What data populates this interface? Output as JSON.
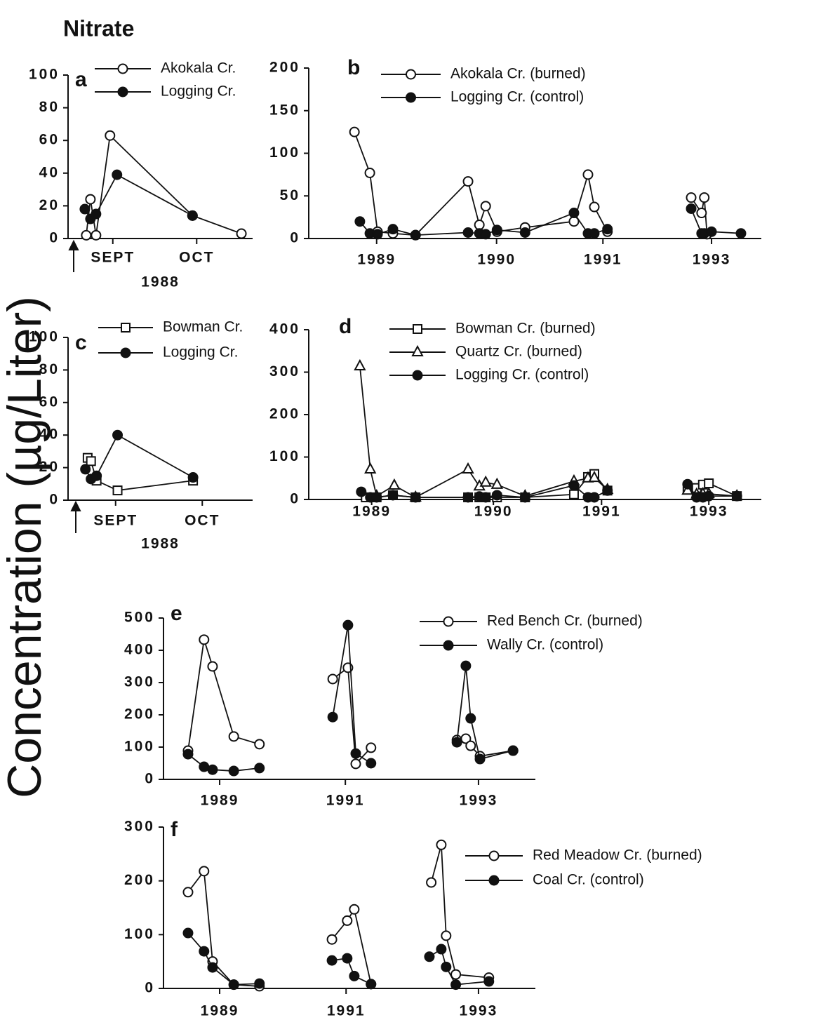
{
  "title": "Nitrate",
  "ylabel": "Concentration (µg/Liter)",
  "chart_data": [
    {
      "type": "line",
      "label": "a",
      "xlabel": "1988",
      "xlim": [
        -1,
        65
      ],
      "xticks": [
        {
          "value": 15,
          "label": "SEPT"
        },
        {
          "value": 45,
          "label": "OCT"
        }
      ],
      "ylim": [
        0,
        100
      ],
      "yticks": [
        0,
        20,
        40,
        60,
        80,
        100
      ],
      "series": [
        {
          "name": "Akokala Cr.",
          "marker": "open-circle",
          "color": "#111",
          "x": [
            5.5,
            7,
            9,
            14,
            43.5,
            61
          ],
          "values": [
            2,
            24,
            2,
            63,
            14,
            3
          ]
        },
        {
          "name": "Logging Cr.",
          "marker": "filled-circle",
          "color": "#111",
          "x": [
            5,
            7,
            9,
            16.5,
            43.5
          ],
          "values": [
            18,
            12,
            15,
            39,
            14
          ]
        }
      ]
    },
    {
      "type": "line",
      "label": "b",
      "xlim": [
        0,
        100
      ],
      "xticks": [
        {
          "value": 15,
          "label": "1989"
        },
        {
          "value": 41.5,
          "label": "1990"
        },
        {
          "value": 65,
          "label": "1991"
        },
        {
          "value": 89,
          "label": "1993"
        }
      ],
      "ylim": [
        0,
        200
      ],
      "yticks": [
        0,
        50,
        100,
        150,
        200
      ],
      "series": [
        {
          "name": "Akokala Cr. (burned)",
          "marker": "open-circle",
          "color": "#111",
          "x": [
            10.1,
            13.5,
            15.2,
            18.6,
            23.6,
            35.2,
            37.7,
            39.1,
            41.6,
            47.8,
            58.6,
            61.7,
            63.1,
            66,
            null,
            84.5,
            86.8,
            87.4,
            88
          ],
          "values": [
            125,
            77,
            8,
            6,
            4,
            67,
            16,
            38,
            8,
            13,
            20,
            75,
            37,
            8,
            null,
            48,
            30,
            48,
            5
          ]
        },
        {
          "name": "Logging Cr. (control)",
          "marker": "filled-circle",
          "color": "#111",
          "x": [
            11.3,
            13.5,
            15.2,
            18.6,
            23.6,
            35.2,
            37.7,
            39.1,
            41.6,
            47.8,
            58.6,
            61.7,
            63.1,
            66,
            null,
            84.5,
            86.8,
            87.4,
            89,
            95.5
          ],
          "values": [
            20,
            6,
            5,
            11,
            4,
            7,
            6,
            5,
            10,
            7,
            30,
            6,
            6,
            11,
            null,
            35,
            6,
            6,
            8,
            6
          ]
        }
      ]
    },
    {
      "type": "line",
      "label": "c",
      "xlabel": "1988",
      "xlim": [
        -1,
        65
      ],
      "xticks": [
        {
          "value": 16,
          "label": "SEPT"
        },
        {
          "value": 47,
          "label": "OCT"
        }
      ],
      "ylim": [
        0,
        100
      ],
      "yticks": [
        0,
        20,
        40,
        60,
        80,
        100
      ],
      "series": [
        {
          "name": "Bowman Cr.",
          "marker": "open-square",
          "color": "#111",
          "x": [
            6,
            7.2,
            9.2,
            16.7,
            43.7
          ],
          "values": [
            26,
            24,
            12,
            6,
            12
          ]
        },
        {
          "name": "Logging Cr.",
          "marker": "filled-circle",
          "color": "#111",
          "x": [
            5.2,
            7.2,
            9.2,
            16.7,
            43.7
          ],
          "values": [
            19,
            13,
            15,
            40,
            14
          ]
        }
      ]
    },
    {
      "type": "line",
      "label": "d",
      "xlim": [
        0,
        100
      ],
      "xticks": [
        {
          "value": 13.9,
          "label": "1989"
        },
        {
          "value": 40.8,
          "label": "1990"
        },
        {
          "value": 64.7,
          "label": "1991"
        },
        {
          "value": 88.4,
          "label": "1993"
        }
      ],
      "ylim": [
        0,
        400
      ],
      "yticks": [
        0,
        100,
        200,
        300,
        400
      ],
      "series": [
        {
          "name": "Bowman Cr. (burned)",
          "marker": "open-square",
          "color": "#111",
          "x": [
            12.6,
            15,
            18.6,
            23.6,
            35.2,
            37.7,
            39.1,
            41.6,
            47.8,
            58.6,
            61.7,
            63.1,
            66,
            null,
            83.7,
            85.7,
            87.1,
            88.4,
            94.6
          ],
          "values": [
            5,
            5,
            10,
            5,
            5,
            5,
            5,
            5,
            5,
            12,
            53,
            60,
            21,
            null,
            25,
            27,
            35,
            38,
            8
          ]
        },
        {
          "name": "Quartz Cr. (burned)",
          "marker": "open-triangle",
          "color": "#111",
          "x": [
            11.3,
            13.6,
            15,
            18.9,
            23.6,
            35.2,
            37.7,
            39.1,
            41.6,
            47.8,
            58.6,
            61.7,
            63.1,
            66,
            null,
            83.7,
            85.7,
            87.1,
            88.4,
            94.6
          ],
          "values": [
            314,
            71,
            8,
            33,
            5,
            71,
            31,
            40,
            35,
            8,
            43,
            50,
            51,
            23,
            null,
            21,
            12,
            13,
            13,
            8
          ]
        },
        {
          "name": "Logging Cr. (control)",
          "marker": "filled-circle",
          "color": "#111",
          "x": [
            11.6,
            13.6,
            15,
            18.6,
            23.6,
            35.2,
            37.7,
            39.1,
            41.6,
            47.8,
            58.6,
            61.7,
            63.1,
            66,
            null,
            83.7,
            85.7,
            87.1,
            88.4,
            94.6
          ],
          "values": [
            18,
            5,
            5,
            10,
            5,
            5,
            7,
            5,
            10,
            5,
            33,
            5,
            5,
            21,
            null,
            36,
            5,
            5,
            8,
            8
          ]
        }
      ]
    },
    {
      "type": "line",
      "label": "e",
      "xlim": [
        0,
        100
      ],
      "xticks": [
        {
          "value": 15.1,
          "label": "1989"
        },
        {
          "value": 48.9,
          "label": "1991"
        },
        {
          "value": 84.7,
          "label": "1993"
        }
      ],
      "ylim": [
        0,
        500
      ],
      "yticks": [
        0,
        100,
        200,
        300,
        400,
        500
      ],
      "series": [
        {
          "name": "Red Bench Cr. (burned)",
          "marker": "open-circle",
          "color": "#111",
          "x": [
            6.6,
            10.9,
            13.2,
            18.9,
            25.8,
            null,
            45.5,
            49.6,
            51.7,
            55.8,
            null,
            78.9,
            81.3,
            82.6,
            85.1,
            94
          ],
          "values": [
            89,
            433,
            350,
            133,
            109,
            null,
            311,
            346,
            48,
            98,
            null,
            122,
            126,
            104,
            72,
            89
          ]
        },
        {
          "name": "Wally Cr. (control)",
          "marker": "filled-circle",
          "color": "#111",
          "x": [
            6.6,
            10.9,
            13.2,
            18.9,
            25.8,
            null,
            45.5,
            49.6,
            51.7,
            55.8,
            null,
            78.9,
            81.3,
            82.6,
            85.1,
            94
          ],
          "values": [
            78,
            39,
            30,
            26,
            35,
            null,
            193,
            478,
            80,
            50,
            null,
            115,
            352,
            189,
            63,
            89
          ]
        }
      ]
    },
    {
      "type": "line",
      "label": "f",
      "xlim": [
        0,
        100
      ],
      "xticks": [
        {
          "value": 15.1,
          "label": "1989"
        },
        {
          "value": 49.1,
          "label": "1991"
        },
        {
          "value": 84.7,
          "label": "1993"
        }
      ],
      "ylim": [
        0,
        300
      ],
      "yticks": [
        0,
        100,
        200,
        300
      ],
      "series": [
        {
          "name": "Red Meadow Cr. (burned)",
          "marker": "open-circle",
          "color": "#111",
          "x": [
            6.6,
            10.9,
            13.2,
            18.9,
            25.8,
            null,
            45.3,
            49.4,
            51.3,
            55.8,
            null,
            72,
            74.7,
            76,
            78.6,
            87.5
          ],
          "values": [
            179,
            218,
            50,
            7,
            4,
            null,
            91,
            126,
            147,
            8,
            null,
            197,
            267,
            98,
            26,
            20
          ]
        },
        {
          "name": "Coal Cr. (control)",
          "marker": "filled-circle",
          "color": "#111",
          "x": [
            6.6,
            10.9,
            13.2,
            18.9,
            25.8,
            null,
            45.3,
            49.4,
            51.3,
            55.8,
            null,
            71.5,
            74.7,
            76,
            78.6,
            87.5
          ],
          "values": [
            103,
            69,
            39,
            7,
            9,
            null,
            52,
            56,
            23,
            8,
            null,
            59,
            73,
            40,
            7,
            13
          ]
        }
      ]
    }
  ]
}
